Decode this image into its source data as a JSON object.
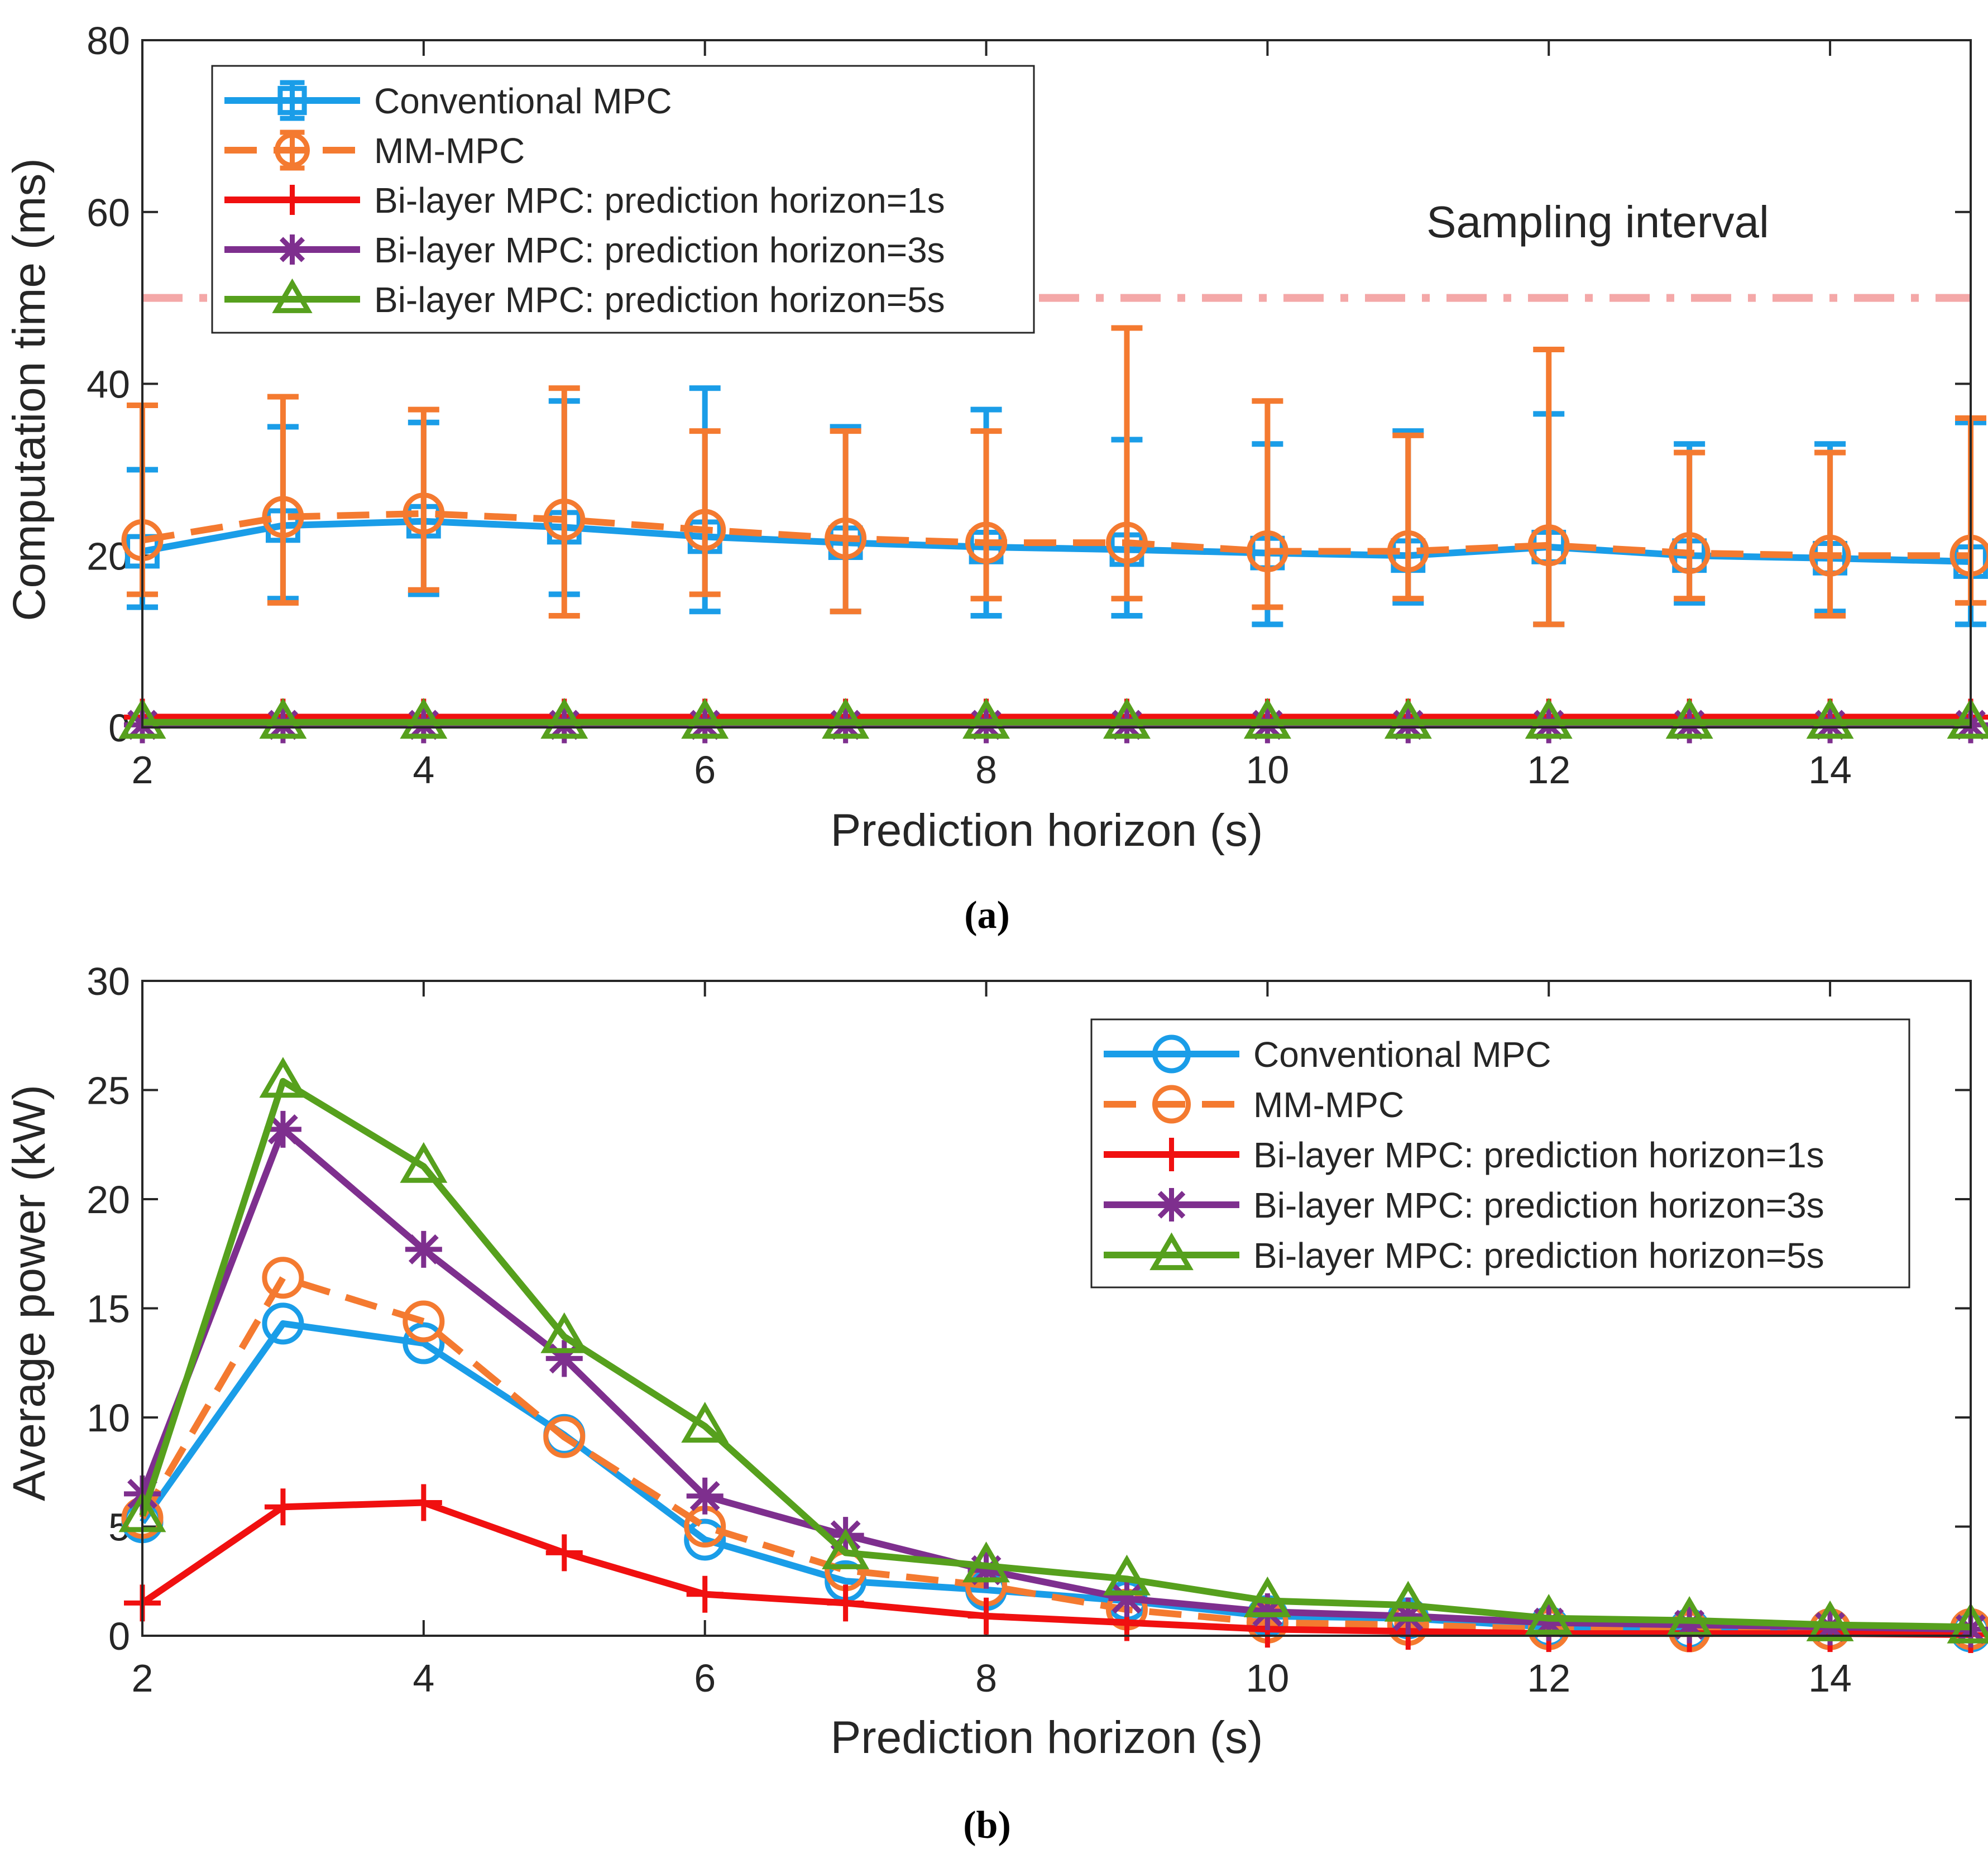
{
  "chart_data": [
    {
      "type": "line",
      "panel": "a",
      "caption": "(a)",
      "caption_letter": "a",
      "xlabel": "Prediction horizon (s)",
      "ylabel": "Computation time (ms)",
      "xlim": [
        2,
        15
      ],
      "ylim": [
        0,
        80
      ],
      "xticks": [
        2,
        4,
        6,
        8,
        10,
        12,
        14
      ],
      "yticks": [
        0,
        20,
        40,
        60,
        80
      ],
      "x": [
        2,
        3,
        4,
        5,
        6,
        7,
        8,
        9,
        10,
        11,
        12,
        13,
        14,
        15
      ],
      "legend_position": "top-left",
      "reference_line": {
        "label": "Sampling interval",
        "value": 50,
        "color": "#f4a8a8"
      },
      "series": [
        {
          "name": "Conventional MPC",
          "color": "#1a9de8",
          "style": "solid",
          "marker": "square",
          "values": [
            20.5,
            23.5,
            24,
            23.3,
            22.2,
            21.5,
            21,
            20.7,
            20.3,
            20,
            21,
            20,
            19.7,
            19.3
          ],
          "error_low": [
            14,
            15,
            15.5,
            15.5,
            13.5,
            13.5,
            13,
            13,
            12,
            14.5,
            12,
            14.5,
            13.5,
            12
          ],
          "error_high": [
            30,
            35,
            35.5,
            38,
            39.5,
            35,
            37,
            33.5,
            33,
            34.5,
            36.5,
            33,
            33,
            35.5
          ]
        },
        {
          "name": "MM-MPC",
          "color": "#f47a30",
          "style": "dashed",
          "marker": "circle",
          "values": [
            21.8,
            24.5,
            24.9,
            24.2,
            23,
            22,
            21.5,
            21.5,
            20.5,
            20.5,
            21.2,
            20.3,
            20,
            20
          ],
          "error_low": [
            15.5,
            14.5,
            16,
            13,
            15.5,
            13.5,
            15,
            15,
            14,
            15,
            12,
            15,
            13,
            14.5
          ],
          "error_high": [
            37.5,
            38.5,
            37,
            39.5,
            34.5,
            34.5,
            34.5,
            46.5,
            38,
            34,
            44,
            32,
            32,
            36
          ]
        },
        {
          "name": "Bi-layer MPC: prediction horizon=1s",
          "color": "#f01010",
          "style": "solid",
          "marker": "plus",
          "values": [
            1.2,
            1.2,
            1.2,
            1.2,
            1.2,
            1.2,
            1.2,
            1.2,
            1.2,
            1.2,
            1.2,
            1.2,
            1.2,
            1.2
          ]
        },
        {
          "name": "Bi-layer MPC: prediction horizon=3s",
          "color": "#7e2f8e",
          "style": "solid",
          "marker": "asterisk",
          "values": [
            0.3,
            0.3,
            0.3,
            0.3,
            0.3,
            0.3,
            0.3,
            0.3,
            0.3,
            0.3,
            0.3,
            0.3,
            0.3,
            0.3
          ]
        },
        {
          "name": "Bi-layer MPC: prediction horizon=5s",
          "color": "#56a01d",
          "style": "solid",
          "marker": "triangle",
          "values": [
            0.6,
            0.6,
            0.6,
            0.6,
            0.6,
            0.6,
            0.6,
            0.6,
            0.6,
            0.6,
            0.6,
            0.6,
            0.6,
            0.6
          ]
        }
      ]
    },
    {
      "type": "line",
      "panel": "b",
      "caption": "(b)",
      "caption_letter": "b",
      "xlabel": "Prediction horizon (s)",
      "ylabel": "Average power (kW)",
      "xlim": [
        2,
        15
      ],
      "ylim": [
        0,
        30
      ],
      "xticks": [
        2,
        4,
        6,
        8,
        10,
        12,
        14
      ],
      "yticks": [
        0,
        5,
        10,
        15,
        20,
        25,
        30
      ],
      "x": [
        2,
        3,
        4,
        5,
        6,
        7,
        8,
        9,
        10,
        11,
        12,
        13,
        14,
        15
      ],
      "legend_position": "top-right",
      "series": [
        {
          "name": "Conventional MPC",
          "color": "#1a9de8",
          "style": "solid",
          "marker": "circle",
          "values": [
            5.2,
            14.3,
            13.4,
            9.2,
            4.4,
            2.5,
            2.1,
            1.6,
            0.9,
            0.8,
            0.4,
            0.3,
            0.3,
            0.2
          ]
        },
        {
          "name": "MM-MPC",
          "color": "#f47a30",
          "style": "dashed",
          "marker": "circle",
          "values": [
            5.4,
            16.4,
            14.4,
            9.1,
            5.0,
            3.0,
            2.3,
            1.2,
            0.6,
            0.5,
            0.3,
            0.2,
            0.3,
            0.3
          ]
        },
        {
          "name": "Bi-layer MPC: prediction horizon=1s",
          "color": "#f01010",
          "style": "solid",
          "marker": "plus",
          "values": [
            1.5,
            5.9,
            6.1,
            3.8,
            1.9,
            1.5,
            0.9,
            0.6,
            0.3,
            0.2,
            0.1,
            0.1,
            0.1,
            0.05
          ]
        },
        {
          "name": "Bi-layer MPC: prediction horizon=3s",
          "color": "#7e2f8e",
          "style": "solid",
          "marker": "asterisk",
          "values": [
            6.5,
            23.2,
            17.7,
            12.7,
            6.4,
            4.6,
            3.0,
            1.7,
            1.1,
            0.9,
            0.6,
            0.5,
            0.4,
            0.3
          ]
        },
        {
          "name": "Bi-layer MPC: prediction horizon=5s",
          "color": "#56a01d",
          "style": "solid",
          "marker": "triangle",
          "values": [
            5.5,
            25.4,
            21.5,
            13.7,
            9.6,
            3.8,
            3.2,
            2.6,
            1.6,
            1.4,
            0.8,
            0.7,
            0.5,
            0.4
          ]
        }
      ]
    }
  ]
}
